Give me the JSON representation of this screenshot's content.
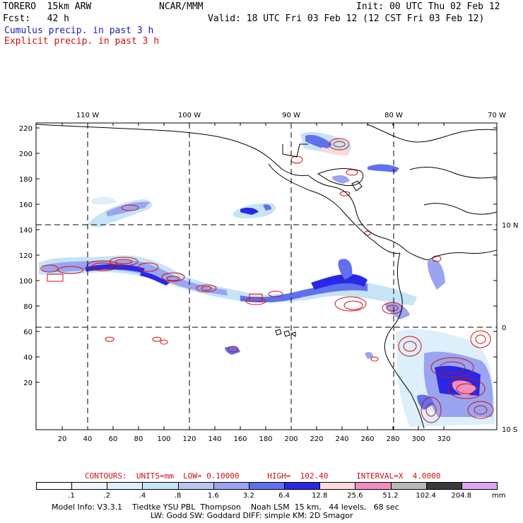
{
  "header": {
    "model": "TORERO  15km ARW",
    "org": "NCAR/MMM",
    "init": "Init: 00 UTC Thu 02 Feb 12",
    "fcst": "Fcst:   42 h",
    "valid": "Valid: 18 UTC Fri 03 Feb 12 (12 CST Fri 03 Feb 12)",
    "legend_cumulus": "Cumulus precip. in past 3 h",
    "legend_explicit": "Explicit precip. in past 3 h"
  },
  "colors": {
    "cumulus_label": "#1c1cb4",
    "explicit": "#d01010"
  },
  "map": {
    "lon_labels": [
      "110 W",
      "100 W",
      "90 W",
      "80 W",
      "70 W"
    ],
    "lat_labels": [
      "10 N",
      "0",
      "10 S"
    ],
    "y_ticks": [
      "220",
      "200",
      "180",
      "160",
      "140",
      "120",
      "100",
      "80",
      "60",
      "40",
      "20"
    ],
    "x_ticks": [
      "20",
      "40",
      "60",
      "80",
      "100",
      "120",
      "140",
      "160",
      "180",
      "200",
      "220",
      "240",
      "260",
      "280",
      "300",
      "320"
    ]
  },
  "contours": {
    "text": "CONTOURS:  UNITS=mm  LOW= 0.10000      HIGH=  102.40      INTERVAL=X  4.0000"
  },
  "colorbar": {
    "labels": [
      ".1",
      ".2",
      ".4",
      ".8",
      "1.6",
      "3.2",
      "6.4",
      "12.8",
      "25.6",
      "51.2",
      "102.4",
      "204.8"
    ],
    "unit": "mm",
    "colors": [
      "#ffffff",
      "#f0f6fc",
      "#dceffa",
      "#c6e4f6",
      "#b8c6f2",
      "#9aa4f0",
      "#6070ee",
      "#2828e6",
      "#fadadd",
      "#ef8fbf",
      "#b8b8b8",
      "#3a3a3a",
      "#d8a8f6"
    ]
  },
  "footer": {
    "line1": "Model Info: V3.3.1    Tiedtke YSU PBL  Thompson    Noah LSM  15 km,   44 levels,   68 sec",
    "line2": "LW: Godd SW: Goddard DIFF: simple KM: 2D Smagor"
  }
}
